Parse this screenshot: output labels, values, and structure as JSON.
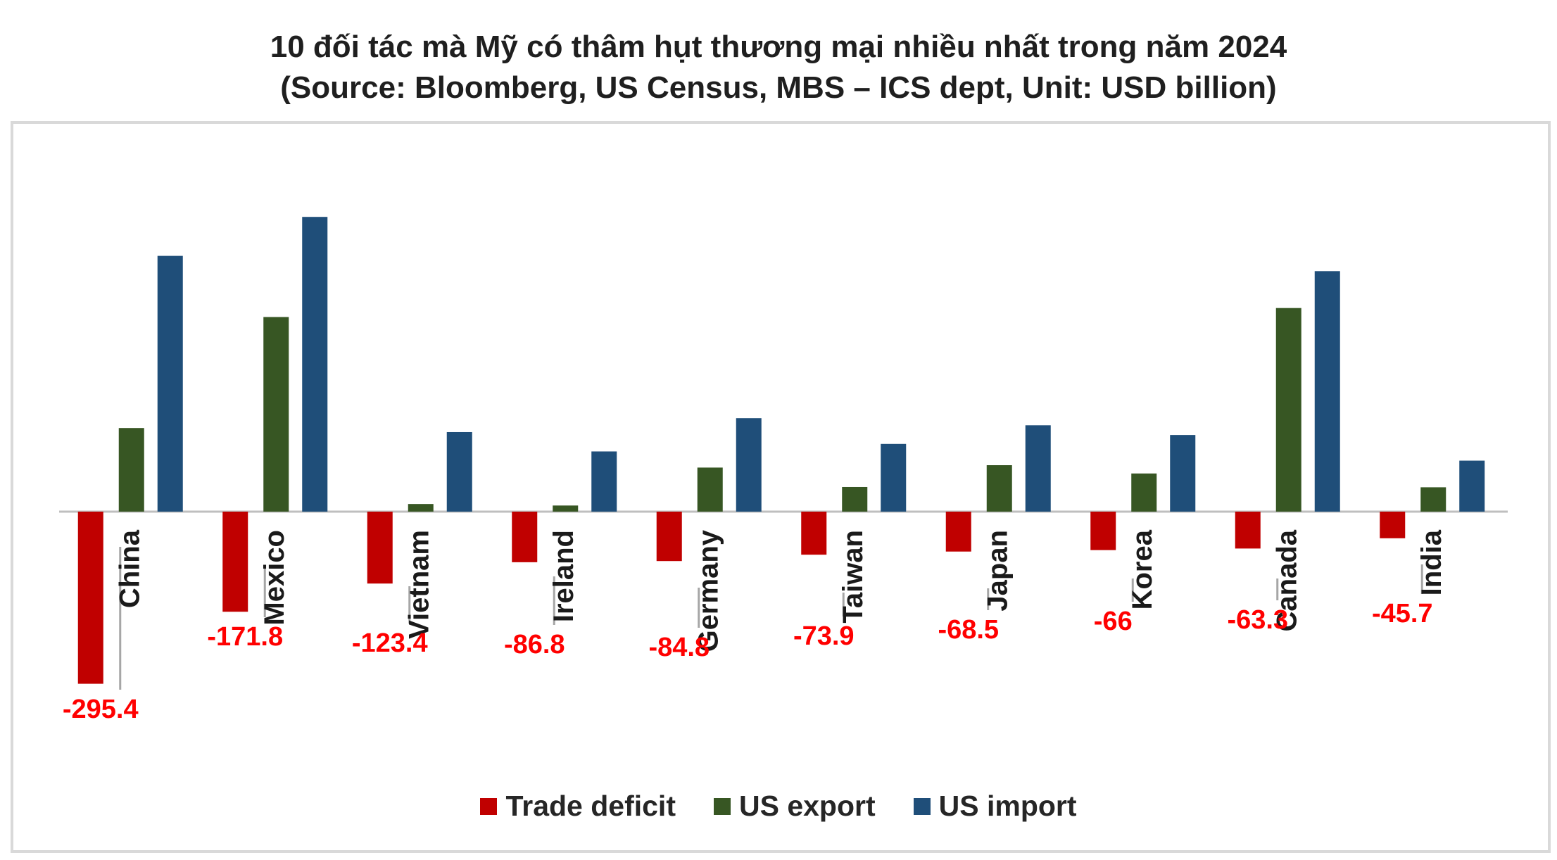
{
  "chart_data": {
    "type": "bar",
    "title": "10 đối tác mà Mỹ có thâm hụt thương mại nhiều nhất trong năm 2024",
    "subtitle": "(Source: Bloomberg, US Census, MBS – ICS dept, Unit: USD billion)",
    "xlabel": "",
    "ylabel": "",
    "categories": [
      "China",
      "Mexico",
      "Vietnam",
      "Ireland",
      "Germany",
      "Taiwan",
      "Japan",
      "Korea",
      "Canada",
      "India"
    ],
    "series": [
      {
        "name": "Trade deficit",
        "color": "#c00000",
        "values": [
          -295.4,
          -171.8,
          -123.4,
          -86.8,
          -84.8,
          -73.9,
          -68.5,
          -66,
          -63.3,
          -45.7
        ]
      },
      {
        "name": "US export",
        "color": "#375623",
        "values": [
          143.5,
          334,
          13.1,
          10.5,
          75.6,
          42.3,
          79.7,
          65.5,
          349.4,
          41.8
        ]
      },
      {
        "name": "US import",
        "color": "#1f4e79",
        "values": [
          438.9,
          505.8,
          136.5,
          103.3,
          160.4,
          116.2,
          148.2,
          131.5,
          412.7,
          87.5
        ]
      }
    ],
    "data_labels": [
      "-295.4",
      "-171.8",
      "-123.4",
      "-86.8",
      "-84.8",
      "-73.9",
      "-68.5",
      "-66",
      "-63.3",
      "-45.7"
    ],
    "ylim": [
      -300,
      520
    ],
    "grid": false,
    "legend_position": "bottom"
  }
}
